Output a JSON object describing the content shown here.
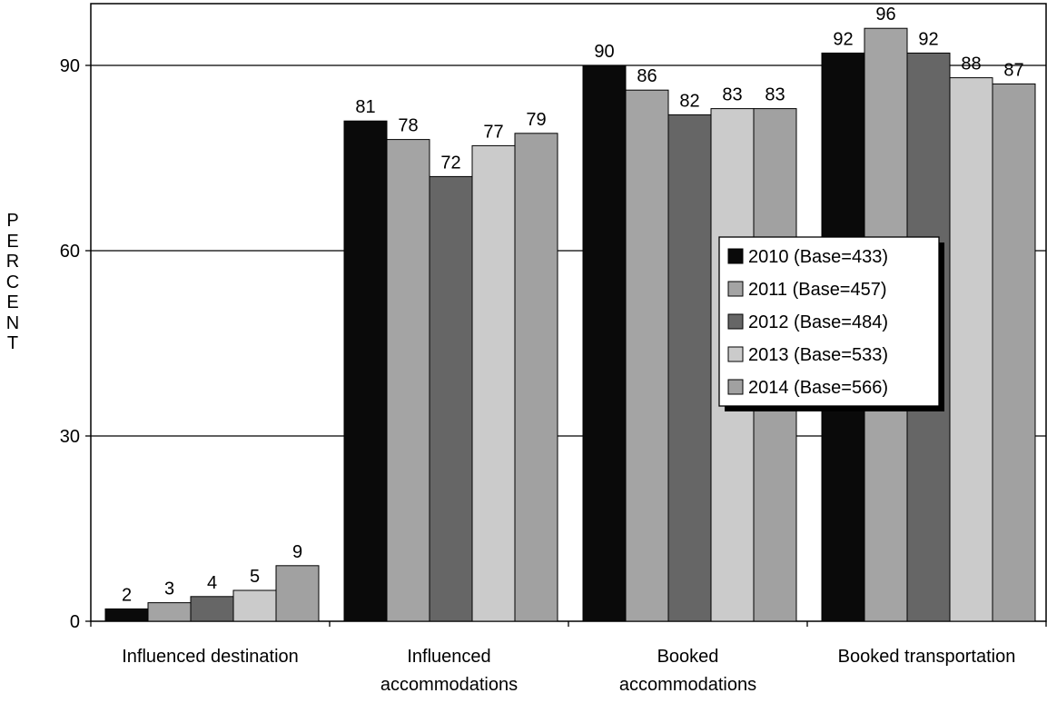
{
  "chart_data": {
    "type": "bar",
    "ylabel": "PERCENT",
    "xlabel": "",
    "ylim": [
      0,
      100
    ],
    "yticks": [
      0,
      30,
      60,
      90
    ],
    "grid": true,
    "legend_position": "right-center",
    "categories": [
      "Influenced destination",
      "Influenced accommodations",
      "Booked accommodations",
      "Booked transportation"
    ],
    "series": [
      {
        "name": "2010 (Base=433)",
        "color": "#0a0a0a",
        "values": [
          2,
          81,
          90,
          92
        ]
      },
      {
        "name": "2011 (Base=457)",
        "color": "#a4a4a4",
        "values": [
          3,
          78,
          86,
          96
        ]
      },
      {
        "name": "2012 (Base=484)",
        "color": "#666666",
        "values": [
          4,
          72,
          82,
          92
        ]
      },
      {
        "name": "2013 (Base=533)",
        "color": "#cbcbcb",
        "values": [
          5,
          77,
          83,
          88
        ]
      },
      {
        "name": "2014 (Base=566)",
        "color": "#a1a1a1",
        "values": [
          9,
          79,
          83,
          87
        ]
      }
    ]
  }
}
